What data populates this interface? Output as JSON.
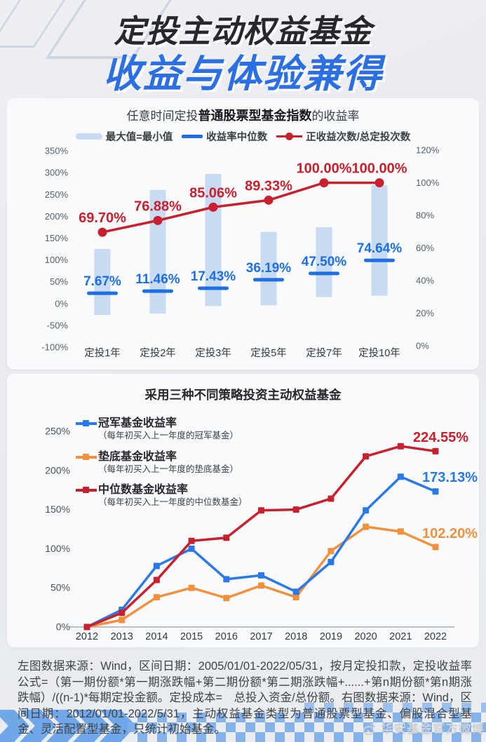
{
  "page": {
    "title_line1": "定投主动权益基金",
    "title_line2": "收益与体验兼得",
    "footnote": "左图数据来源：Wind，区间日期：2005/01/01-2022/05/31，按月定投扣款，定投收益率公式=（第一期份额*第一期涨跌幅+第二期份额*第二期涨跌幅+......+第n期份额*第n期涨跌幅）/((n-1)*每期定投金额。定投成本=　总投入资金/总份额。右图数据来源：Wind，区间日期：2012/01/01-2022/5/31，主动权益基金类型为普通股票型基金、偏股混合型基金、灵活配置型基金，只统计初始基金。",
    "watermark": "华安基金官方微博"
  },
  "colors": {
    "accent_blue": "#1d6fe2",
    "accent_red": "#c8202c",
    "accent_orange": "#f2913d",
    "range_bar_blue": "#c9daf3",
    "title_blue": "#2b6fe3",
    "title_dark": "#26282c",
    "page_bg": "#e9ebef",
    "card_bg": "#f8fafb",
    "pattern_blue": "#7fafe9",
    "watermark_gray": "#ced2d7"
  },
  "chart_data": [
    {
      "type": "bar",
      "subtype": "range-bars + median dashes + win-rate line (dual axis)",
      "title_prefix": "任意时间定投",
      "title_emph": "普通股票型基金指数",
      "title_suffix": "的收益率",
      "legend": [
        "最大值=最小值",
        "收益率中位数",
        "正收益次数/总定投次数"
      ],
      "categories": [
        "定投1年",
        "定投2年",
        "定投3年",
        "定投5年",
        "定投7年",
        "定投10年"
      ],
      "left_axis": {
        "labels": [
          "350%",
          "300%",
          "250%",
          "200%",
          "150%",
          "100%",
          "50%",
          "0%",
          "-50%",
          "-100%"
        ],
        "values": [
          350,
          300,
          250,
          200,
          150,
          100,
          50,
          0,
          -50,
          -100
        ],
        "range": [
          -100,
          350
        ]
      },
      "right_axis": {
        "labels": [
          "120%",
          "100%",
          "80%",
          "60%",
          "40%",
          "20%",
          "0%"
        ],
        "values": [
          120,
          100,
          80,
          60,
          40,
          20,
          0
        ],
        "range": [
          0,
          120
        ]
      },
      "max_min_range_pct": [
        [
          -26,
          125
        ],
        [
          -23,
          260
        ],
        [
          -6,
          297
        ],
        [
          -4,
          164
        ],
        [
          15,
          175
        ],
        [
          18,
          271
        ]
      ],
      "median_return_labels": [
        "7.67%",
        "11.46%",
        "17.43%",
        "36.19%",
        "47.50%",
        "74.64%"
      ],
      "median_return_values": [
        7.67,
        11.46,
        17.43,
        36.19,
        47.5,
        74.64
      ],
      "median_dash_pos_pct_left_axis": [
        23.5,
        28.5,
        35,
        54.5,
        69,
        99
      ],
      "positive_rate_labels": [
        "69.70%",
        "76.88%",
        "85.06%",
        "89.33%",
        "100.00%",
        "100.00%"
      ],
      "positive_rate_values_right_axis": [
        69.7,
        76.88,
        85.06,
        89.33,
        100.0,
        100.0
      ],
      "grid": false,
      "legend_position": "top"
    },
    {
      "type": "line",
      "title": "采用三种不同策略投资主动权益基金",
      "x_labels": [
        "2012",
        "2013",
        "2014",
        "2015",
        "2016",
        "2017",
        "2018",
        "2019",
        "2020",
        "2021",
        "2022"
      ],
      "y_axis": {
        "labels": [
          "250%",
          "200%",
          "150%",
          "100%",
          "50%",
          "0%"
        ],
        "values": [
          250,
          200,
          150,
          100,
          50,
          0
        ],
        "range": [
          0,
          250
        ]
      },
      "series": [
        {
          "id": "champion",
          "name": "冠军基金收益率",
          "desc": "（每年初买入上一年度的冠军基金）",
          "color": "#2b79e8",
          "values": [
            0,
            22,
            78,
            100,
            61,
            66,
            45,
            83,
            149,
            192,
            173.13
          ],
          "end_label": "173.13%"
        },
        {
          "id": "worst",
          "name": "垫底基金收益率",
          "desc": "（每年初买入上一年度的垫底基金）",
          "color": "#f2913d",
          "values": [
            0,
            9,
            38,
            50,
            37,
            53,
            38,
            97,
            128,
            122,
            102.2
          ],
          "end_label": "102.20%"
        },
        {
          "id": "median",
          "name": "中位数基金收益率",
          "desc": "（每年初买入上一年度的中位数基金）",
          "color": "#c8202c",
          "values": [
            0,
            18,
            60,
            110,
            114,
            149,
            150,
            164,
            218,
            231,
            224.55
          ],
          "end_label": "224.55%"
        }
      ],
      "grid": false,
      "legend_position": "top-left-inside"
    }
  ]
}
